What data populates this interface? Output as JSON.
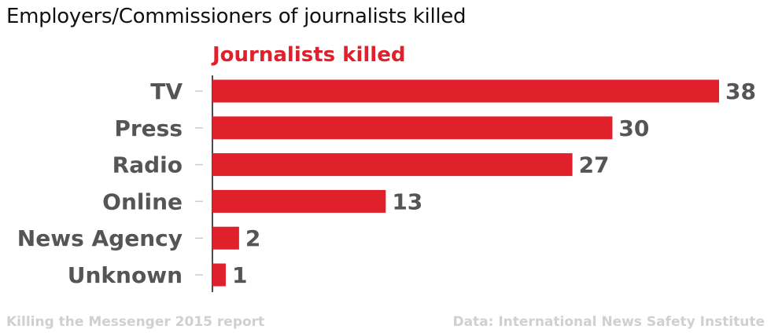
{
  "header": {
    "title": "Employers/Commissioners of journalists killed"
  },
  "footer": {
    "left": "Killing the Messenger 2015 report",
    "right": "Data: International News Safety Institute"
  },
  "colors": {
    "bar": "#e0202b",
    "label": "#555555",
    "footer": "#d0d0d0"
  },
  "chart_data": {
    "type": "bar",
    "orientation": "horizontal",
    "categories": [
      "TV",
      "Press",
      "Radio",
      "Online",
      "News Agency",
      "Unknown"
    ],
    "series": [
      {
        "name": "Journalists killed",
        "values": [
          38,
          30,
          27,
          13,
          2,
          1
        ]
      }
    ],
    "xlim": [
      0,
      38
    ],
    "grid": false,
    "legend": "top-left"
  }
}
